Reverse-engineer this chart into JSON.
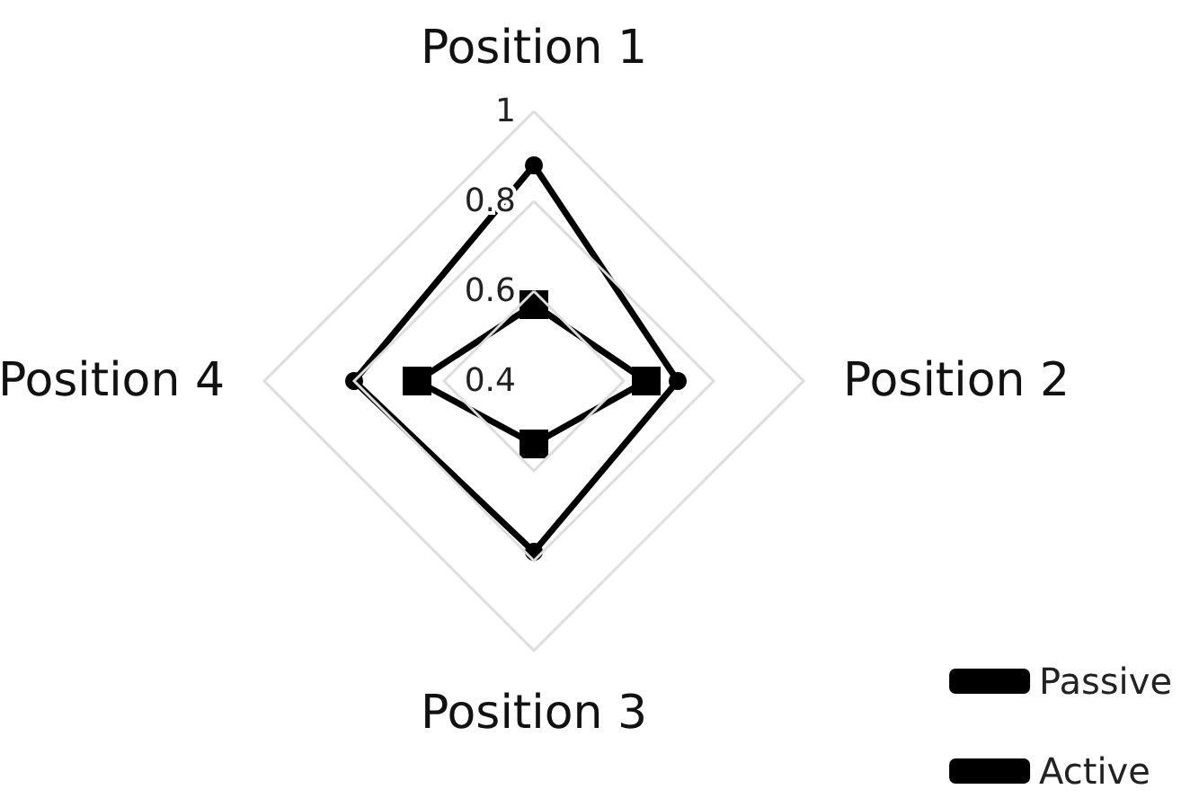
{
  "chart_data": {
    "type": "radar",
    "categories": [
      "Position 1",
      "Position 2",
      "Position 3",
      "Position 4"
    ],
    "ylim": [
      0.4,
      1
    ],
    "yticks": [
      0.4,
      0.6,
      0.8,
      1
    ],
    "grid": true,
    "legend": "bottom right",
    "line_style": "solid",
    "series": [
      {
        "name": "Passive",
        "color": "#000000",
        "marker": "square",
        "values": [
          0.57,
          0.65,
          0.54,
          0.66
        ]
      },
      {
        "name": "Active",
        "color": "#000000",
        "marker": "circle",
        "values": [
          0.88,
          0.72,
          0.78,
          0.8
        ]
      }
    ]
  }
}
